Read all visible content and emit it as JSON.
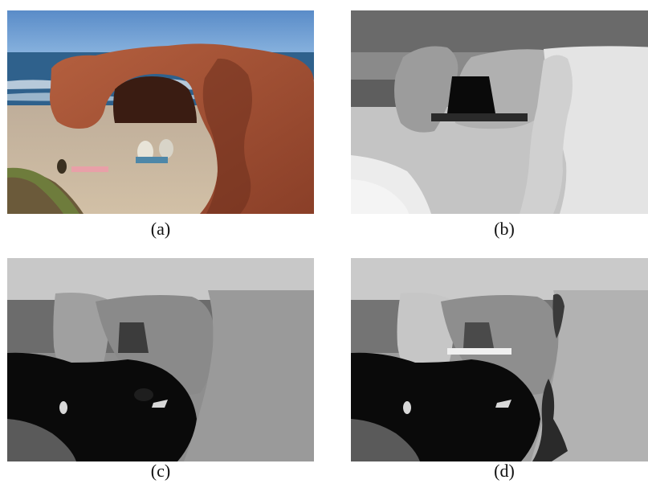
{
  "figure": {
    "panels": [
      {
        "id": "a",
        "caption": "(a)",
        "kind": "photograph"
      },
      {
        "id": "b",
        "caption": "(b)",
        "kind": "segmentation-map"
      },
      {
        "id": "c",
        "caption": "(c)",
        "kind": "segmentation-map"
      },
      {
        "id": "d",
        "caption": "(d)",
        "kind": "segmentation-map"
      }
    ]
  },
  "colors": {
    "sky": "#5f8fc8",
    "sea": "#2e5f8a",
    "rock": "#a65438",
    "sand": "#c8b49a",
    "grass": "#6d7a3a"
  }
}
